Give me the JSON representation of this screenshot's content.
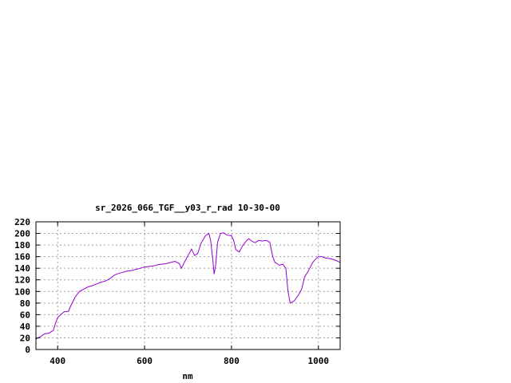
{
  "chart_data": {
    "type": "line",
    "title": "sr_2026_066_TGF__y03_r_rad 10-30-00",
    "xlabel": "nm",
    "ylabel": "",
    "xlim": [
      350,
      1050
    ],
    "ylim": [
      0,
      220
    ],
    "x_ticks": [
      400,
      600,
      800,
      1000
    ],
    "y_ticks": [
      0,
      20,
      40,
      60,
      80,
      100,
      120,
      140,
      160,
      180,
      200,
      220
    ],
    "grid": true,
    "colors": {
      "series": "#9400d3",
      "frame": "#000000",
      "grid": "#a0a0a0"
    },
    "series": [
      {
        "name": "",
        "points": [
          [
            350,
            18
          ],
          [
            360,
            22
          ],
          [
            370,
            27
          ],
          [
            380,
            28
          ],
          [
            390,
            33
          ],
          [
            395,
            45
          ],
          [
            400,
            55
          ],
          [
            410,
            62
          ],
          [
            415,
            65
          ],
          [
            425,
            66
          ],
          [
            430,
            75
          ],
          [
            440,
            90
          ],
          [
            450,
            100
          ],
          [
            460,
            104
          ],
          [
            470,
            108
          ],
          [
            480,
            110
          ],
          [
            490,
            113
          ],
          [
            500,
            116
          ],
          [
            510,
            118
          ],
          [
            520,
            122
          ],
          [
            530,
            128
          ],
          [
            540,
            131
          ],
          [
            550,
            133
          ],
          [
            560,
            135
          ],
          [
            570,
            136
          ],
          [
            580,
            138
          ],
          [
            590,
            140
          ],
          [
            600,
            142
          ],
          [
            610,
            143
          ],
          [
            620,
            144
          ],
          [
            630,
            146
          ],
          [
            640,
            147
          ],
          [
            650,
            148
          ],
          [
            660,
            150
          ],
          [
            670,
            152
          ],
          [
            680,
            148
          ],
          [
            685,
            140
          ],
          [
            690,
            148
          ],
          [
            700,
            162
          ],
          [
            708,
            173
          ],
          [
            715,
            162
          ],
          [
            722,
            165
          ],
          [
            730,
            183
          ],
          [
            740,
            196
          ],
          [
            748,
            200
          ],
          [
            752,
            188
          ],
          [
            757,
            155
          ],
          [
            760,
            130
          ],
          [
            764,
            148
          ],
          [
            768,
            185
          ],
          [
            775,
            200
          ],
          [
            782,
            201
          ],
          [
            790,
            197
          ],
          [
            800,
            196
          ],
          [
            805,
            188
          ],
          [
            810,
            172
          ],
          [
            818,
            168
          ],
          [
            825,
            178
          ],
          [
            835,
            188
          ],
          [
            840,
            191
          ],
          [
            848,
            186
          ],
          [
            855,
            184
          ],
          [
            862,
            188
          ],
          [
            870,
            187
          ],
          [
            880,
            188
          ],
          [
            888,
            185
          ],
          [
            895,
            160
          ],
          [
            900,
            150
          ],
          [
            905,
            148
          ],
          [
            910,
            145
          ],
          [
            918,
            147
          ],
          [
            925,
            140
          ],
          [
            930,
            100
          ],
          [
            935,
            80
          ],
          [
            945,
            84
          ],
          [
            955,
            95
          ],
          [
            962,
            105
          ],
          [
            968,
            125
          ],
          [
            975,
            133
          ],
          [
            980,
            140
          ],
          [
            987,
            150
          ],
          [
            995,
            157
          ],
          [
            1000,
            160
          ],
          [
            1008,
            160
          ],
          [
            1015,
            158
          ],
          [
            1022,
            157
          ],
          [
            1030,
            156
          ],
          [
            1038,
            154
          ],
          [
            1045,
            152
          ],
          [
            1050,
            150
          ]
        ]
      }
    ]
  }
}
